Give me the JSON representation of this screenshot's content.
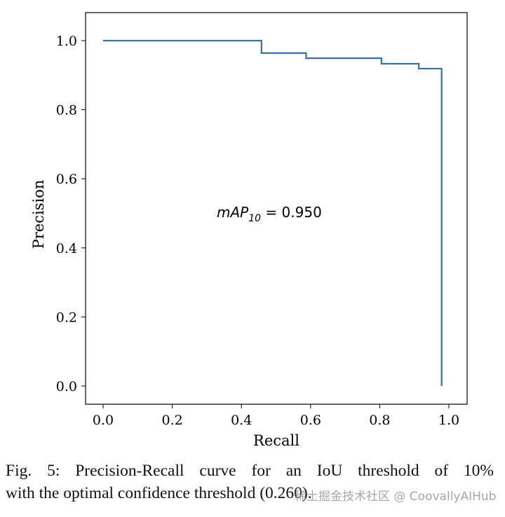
{
  "chart_data": {
    "type": "line",
    "step": true,
    "xlabel": "Recall",
    "ylabel": "Precision",
    "xlim": [
      -0.05,
      1.05
    ],
    "ylim": [
      -0.05,
      1.05
    ],
    "xticks": [
      "0.0",
      "0.2",
      "0.4",
      "0.6",
      "0.8",
      "1.0"
    ],
    "yticks": [
      "0.0",
      "0.2",
      "0.4",
      "0.6",
      "0.8",
      "1.0"
    ],
    "grid": false,
    "color": "#3a6fa0",
    "annotation": {
      "prefix": "mAP",
      "subscript": "10",
      "suffix": " = 0.950"
    },
    "x": [
      0.0,
      0.458,
      0.458,
      0.587,
      0.587,
      0.805,
      0.805,
      0.913,
      0.913,
      0.979,
      0.979
    ],
    "y": [
      1.0,
      1.0,
      0.964,
      0.964,
      0.949,
      0.949,
      0.933,
      0.933,
      0.919,
      0.919,
      0.0
    ]
  },
  "caption": {
    "line1": "Fig. 5: Precision-Recall curve for an IoU threshold of 10%",
    "line2": "with the optimal confidence threshold (0.260)."
  },
  "watermark": "稀土掘金技术社区 @ CoovallyAIHub"
}
